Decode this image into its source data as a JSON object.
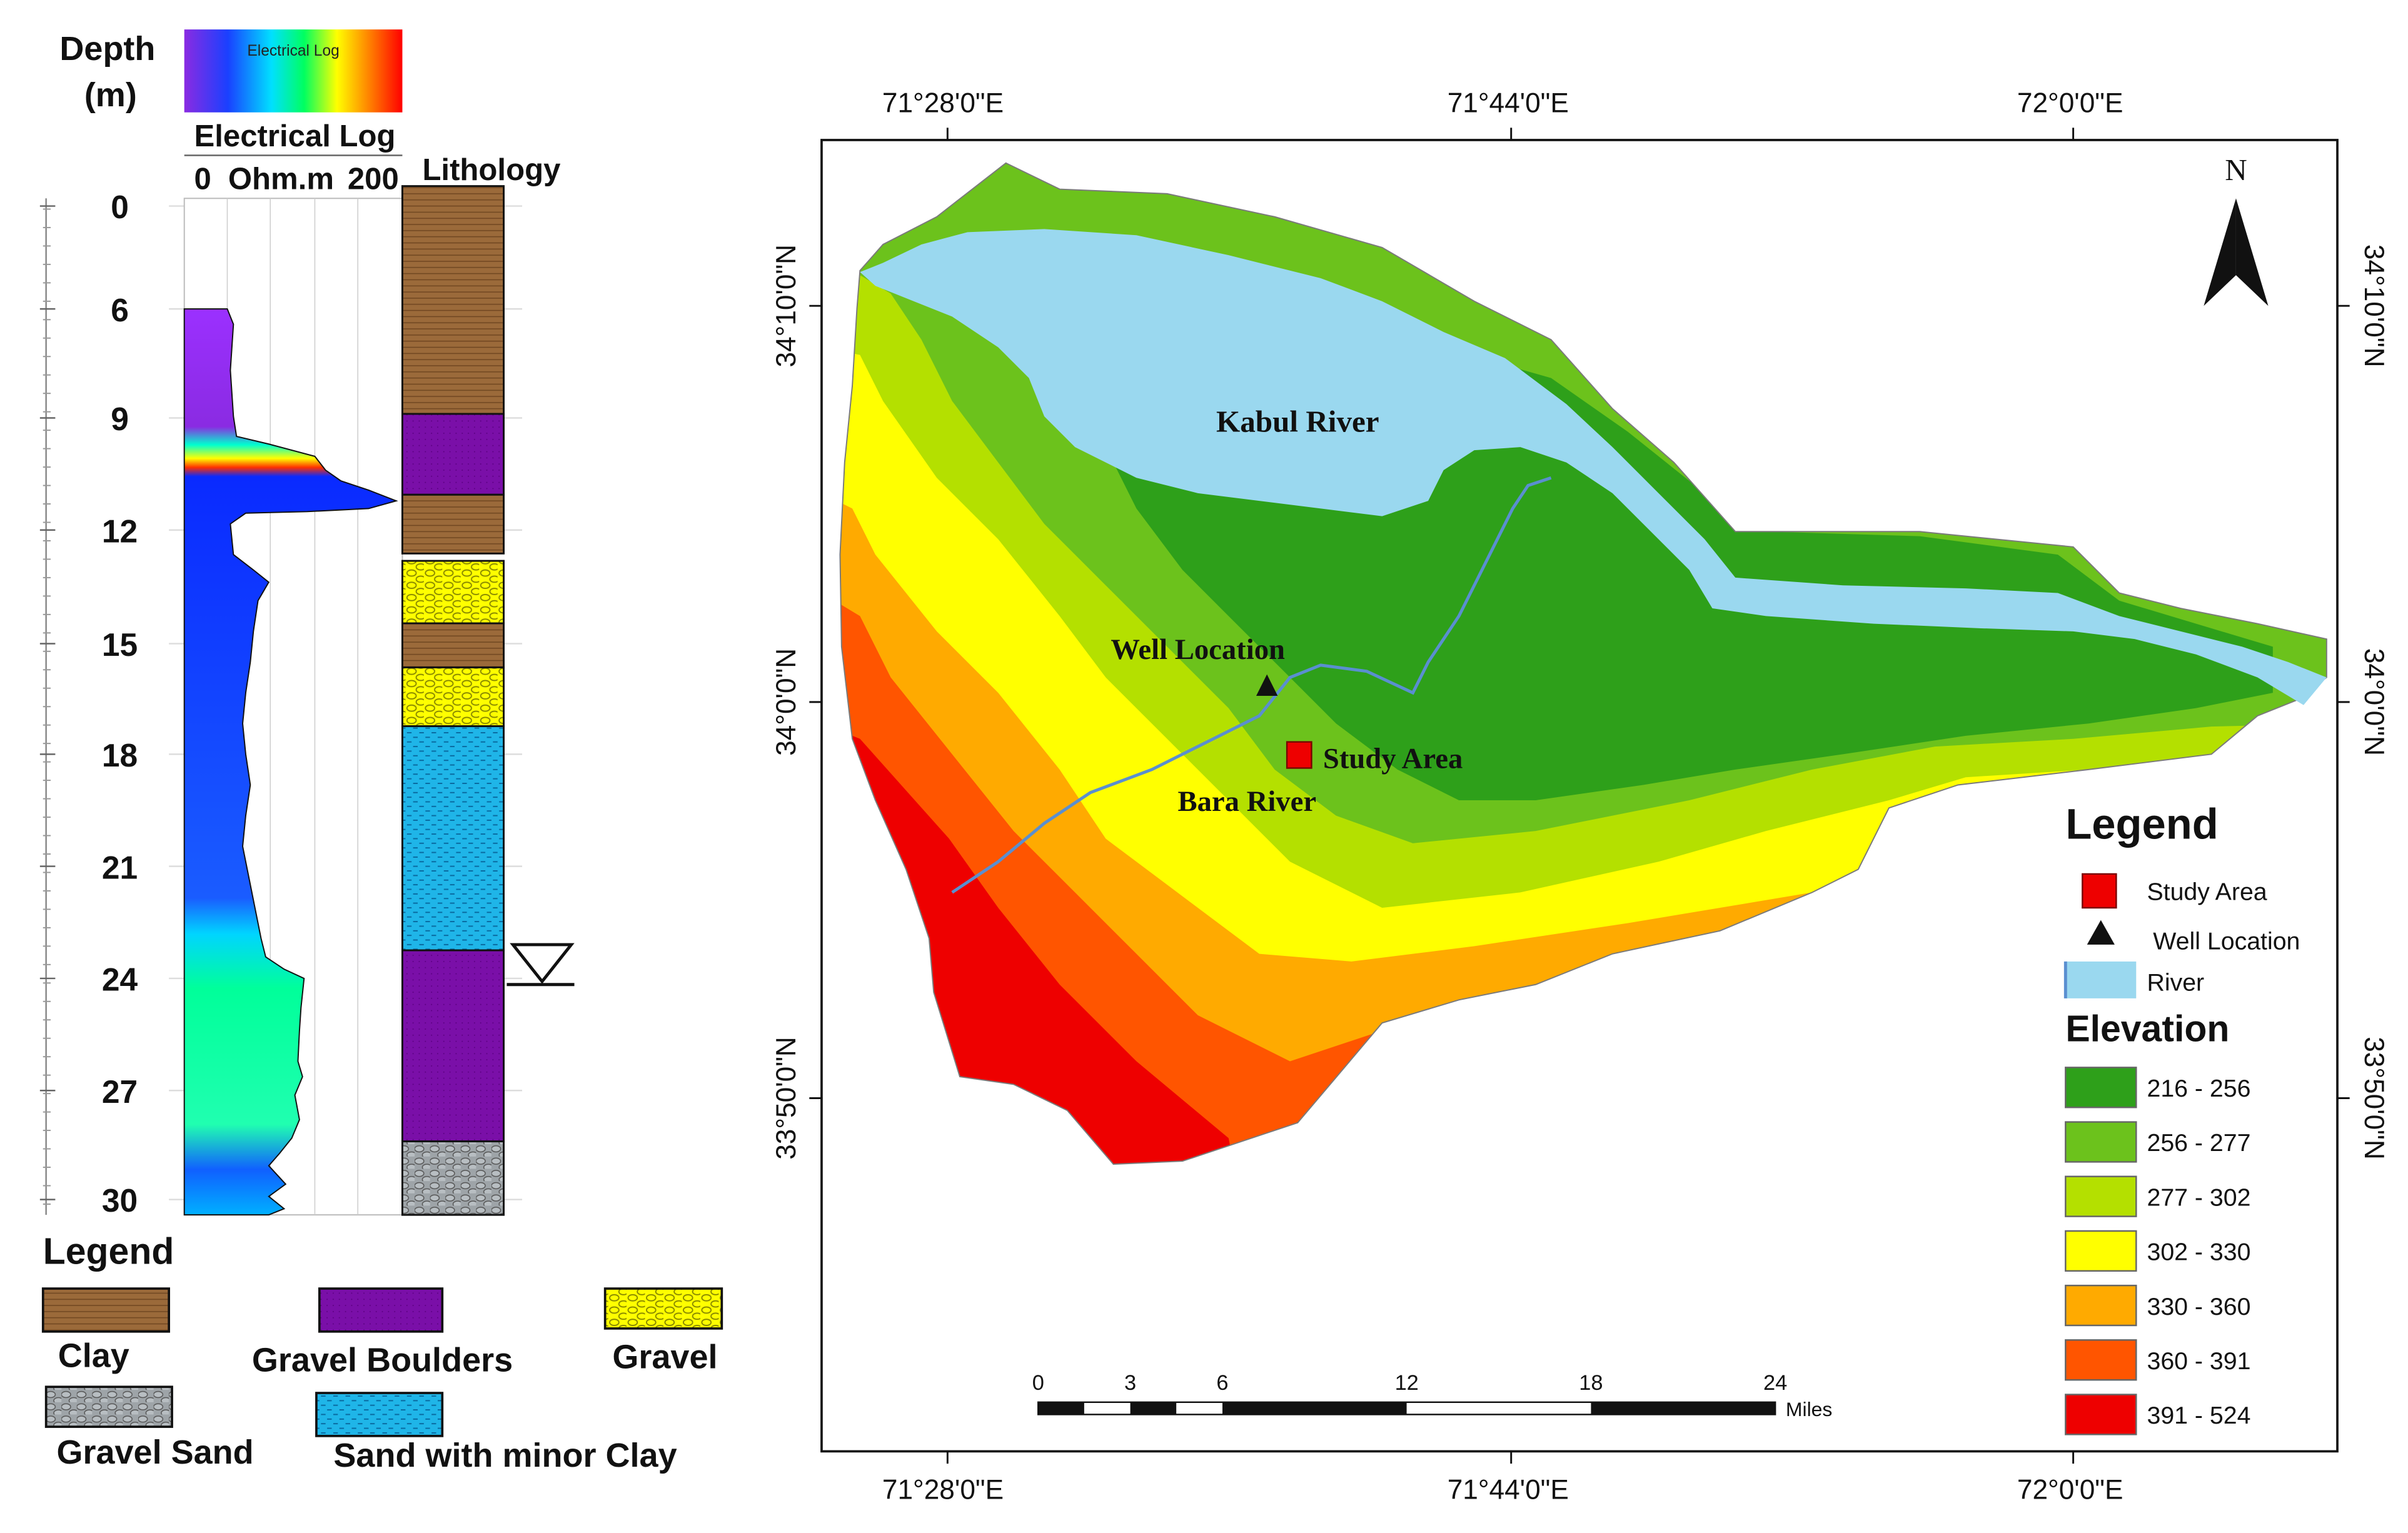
{
  "log_panel": {
    "depth_header_line1": "Depth",
    "depth_header_line2": "(m)",
    "colorbar_label": "Electrical Log",
    "log_title": "Electrical Log",
    "log_unit_left": "0",
    "log_unit_mid": "Ohm.m",
    "log_unit_right": "200",
    "lithology_title": "Lithology",
    "depth_ticks": [
      "0",
      "6",
      "9",
      "12",
      "15",
      "18",
      "21",
      "24",
      "27",
      "30"
    ],
    "colors": {
      "clay": "#9b6a3a",
      "gravel_boulders": "#7a0fa8",
      "gravel": "#ffff00",
      "sand_with_minor_clay": "#1fb5e8",
      "gravel_sand": "#9ea4a8"
    },
    "lithology_layers": [
      {
        "unit": "Clay",
        "top_m": 0,
        "bottom_m": 6.2
      },
      {
        "unit": "Gravel Boulders",
        "top_m": 6.2,
        "bottom_m": 8.4
      },
      {
        "unit": "Clay",
        "top_m": 8.4,
        "bottom_m": 10.0
      },
      {
        "unit": "Gravel",
        "top_m": 10.2,
        "bottom_m": 11.9
      },
      {
        "unit": "Clay",
        "top_m": 11.9,
        "bottom_m": 13.1
      },
      {
        "unit": "Gravel",
        "top_m": 13.1,
        "bottom_m": 14.7
      },
      {
        "unit": "Sand with minor Clay",
        "top_m": 14.7,
        "bottom_m": 20.8
      },
      {
        "unit": "Gravel Boulders",
        "top_m": 20.8,
        "bottom_m": 26.0
      },
      {
        "unit": "Gravel Sand",
        "top_m": 26.0,
        "bottom_m": 28.0
      }
    ],
    "water_table_icon": "inverted-triangle-icon"
  },
  "log_legend": {
    "title": "Legend",
    "items": [
      {
        "label": "Clay",
        "key": "clay"
      },
      {
        "label": "Gravel Boulders",
        "key": "gravel_boulders"
      },
      {
        "label": "Gravel",
        "key": "gravel"
      },
      {
        "label": "Gravel Sand",
        "key": "gravel_sand"
      },
      {
        "label": "Sand with minor Clay",
        "key": "sand_with_minor_clay"
      }
    ]
  },
  "map": {
    "lon_labels": [
      "71°28'0\"E",
      "71°44'0\"E",
      "72°0'0\"E"
    ],
    "lat_labels": [
      "34°10'0\"N",
      "34°0'0\"N",
      "33°50'0\"N"
    ],
    "north_label": "N",
    "north_icon": "north-arrow-icon",
    "labels": {
      "kabul_river": "Kabul River",
      "well_location": "Well Location",
      "study_area": "Study Area",
      "bara_river": "Bara River"
    },
    "scale_bar": {
      "ticks": [
        "0",
        "3",
        "6",
        "12",
        "18",
        "24"
      ],
      "unit": "Miles"
    },
    "legend": {
      "title": "Legend",
      "study_area": "Study Area",
      "well_location": "Well Location",
      "river": "River",
      "elevation_title": "Elevation",
      "elevation_classes": [
        {
          "label": "216 - 256",
          "color": "#2ea01a"
        },
        {
          "label": "256 - 277",
          "color": "#6cc21c"
        },
        {
          "label": "277 - 302",
          "color": "#b4e000"
        },
        {
          "label": "302 - 330",
          "color": "#ffff00"
        },
        {
          "label": "330 - 360",
          "color": "#ffaa00"
        },
        {
          "label": "360 - 391",
          "color": "#ff5500"
        },
        {
          "label": "391 - 524",
          "color": "#ee0000"
        }
      ]
    },
    "colors": {
      "river": "#9ad8ef",
      "study_area": "#ee0000",
      "stream": "#5a8fd0"
    }
  }
}
